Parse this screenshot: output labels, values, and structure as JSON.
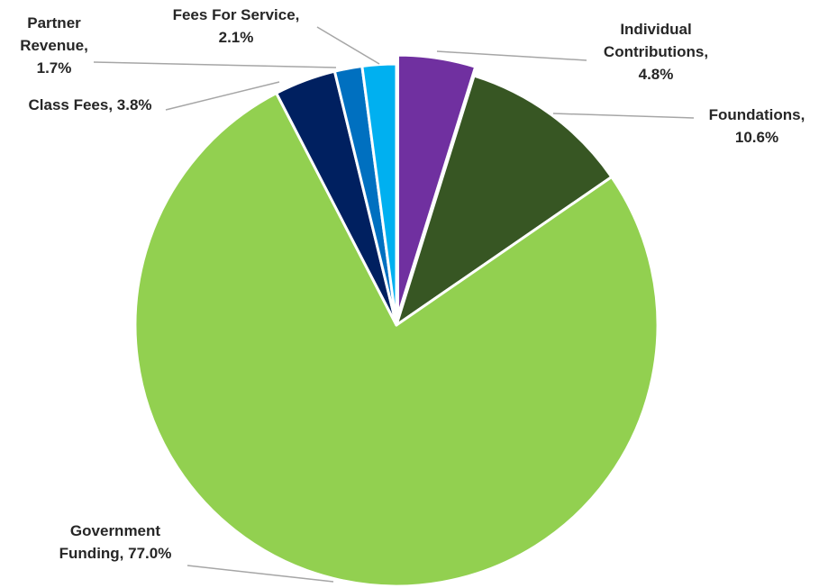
{
  "chart_data": {
    "type": "pie",
    "slices": [
      {
        "name": "Individual Contributions",
        "value": 4.8,
        "label_lines": [
          "Individual",
          "Contributions,",
          "4.8%"
        ],
        "color": "#7030A0"
      },
      {
        "name": "Foundations",
        "value": 10.6,
        "label_lines": [
          "Foundations,",
          "10.6%"
        ],
        "color": "#375623"
      },
      {
        "name": "Government Funding",
        "value": 77.0,
        "label_lines": [
          "Government",
          "Funding, 77.0%"
        ],
        "color": "#92D050"
      },
      {
        "name": "Class Fees",
        "value": 3.8,
        "label_lines": [
          "Class Fees, 3.8%"
        ],
        "color": "#002060"
      },
      {
        "name": "Partner Revenue",
        "value": 1.7,
        "label_lines": [
          "Partner",
          "Revenue,",
          "1.7%"
        ],
        "color": "#0070C0"
      },
      {
        "name": "Fees For Service",
        "value": 2.1,
        "label_lines": [
          "Fees For Service,",
          "2.1%"
        ],
        "color": "#00B0F0"
      }
    ],
    "start_angle_deg": 0,
    "direction": "clockwise",
    "exploded_slice": "Individual Contributions",
    "slice_border_color": "#ffffff",
    "leader_line_color": "#a6a6a6",
    "label_color": "#262626"
  }
}
